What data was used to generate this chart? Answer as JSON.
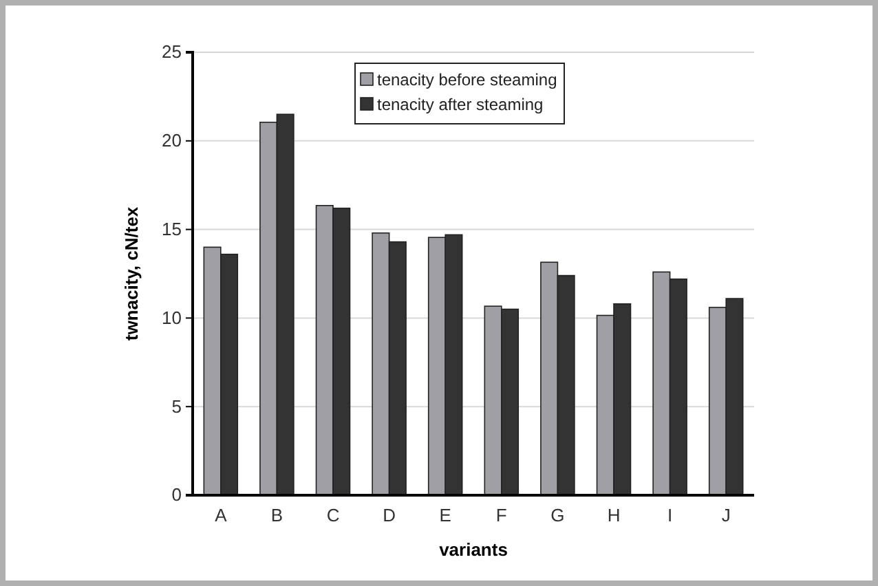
{
  "chart_data": {
    "type": "bar",
    "xlabel": "variants",
    "ylabel": "twnacity, cN/tex",
    "categories": [
      "A",
      "B",
      "C",
      "D",
      "E",
      "F",
      "G",
      "H",
      "I",
      "J"
    ],
    "series": [
      {
        "name": "tenacity before steaming",
        "color": "#a0a0a4",
        "values": [
          14.0,
          21.05,
          16.35,
          14.8,
          14.55,
          10.67,
          13.15,
          10.15,
          12.6,
          10.6
        ]
      },
      {
        "name": "tenacity after steaming",
        "color": "#333333",
        "values": [
          13.6,
          21.5,
          16.2,
          14.3,
          14.7,
          10.5,
          12.4,
          10.8,
          12.2,
          11.1
        ]
      }
    ],
    "ylim": [
      0,
      25
    ],
    "yticks": [
      0,
      5,
      10,
      15,
      20,
      25
    ],
    "grid": "y",
    "legend": "top right"
  }
}
